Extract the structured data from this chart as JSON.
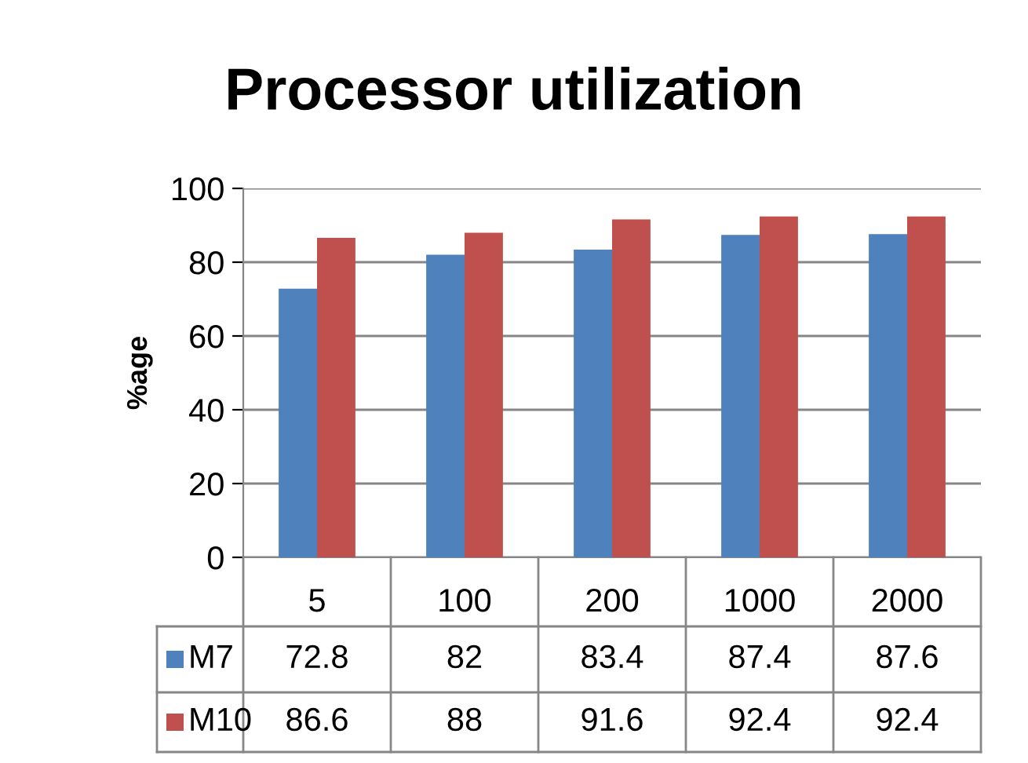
{
  "chart_data": {
    "type": "bar",
    "title": "Processor utilization",
    "ylabel": "%age",
    "categories": [
      "5",
      "100",
      "200",
      "1000",
      "2000"
    ],
    "series": [
      {
        "name": "M7",
        "color": "#4f81bd",
        "values": [
          72.8,
          82,
          83.4,
          87.4,
          87.6
        ]
      },
      {
        "name": "M10",
        "color": "#c0504d",
        "values": [
          86.6,
          88,
          91.6,
          92.4,
          92.4
        ]
      }
    ],
    "ylim": [
      0,
      100
    ],
    "yticks": [
      0,
      20,
      40,
      60,
      80,
      100
    ],
    "grid": "y",
    "legend": "bottom",
    "data_labels": true
  }
}
